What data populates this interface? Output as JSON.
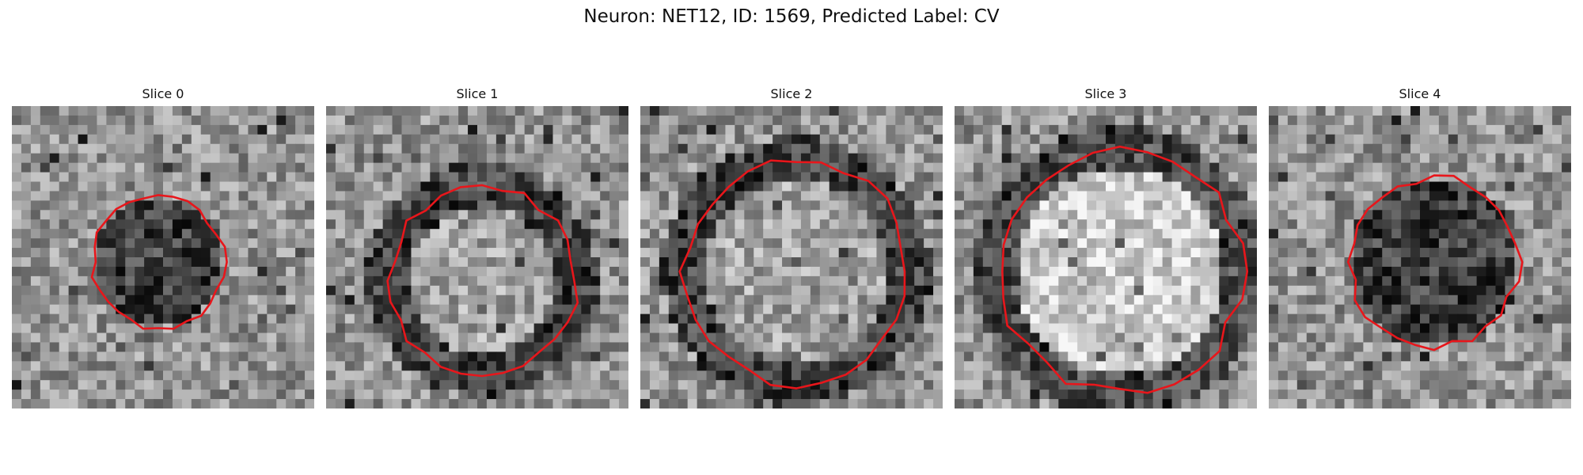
{
  "figure": {
    "title": "Neuron: NET12, ID: 1569, Predicted Label: CV"
  },
  "panels": [
    {
      "title": "Slice 0",
      "ring": "dark"
    },
    {
      "title": "Slice 1",
      "ring": "dark-ring"
    },
    {
      "title": "Slice 2",
      "ring": "dark-ring"
    },
    {
      "title": "Slice 3",
      "ring": "bright"
    },
    {
      "title": "Slice 4",
      "ring": "dark"
    }
  ],
  "colors": {
    "contour": "#e8161b"
  }
}
